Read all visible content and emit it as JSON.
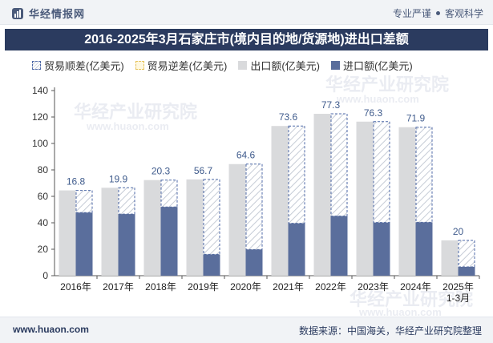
{
  "header": {
    "brand": "华经情报网",
    "tags": [
      "专业严谨",
      "客观科学"
    ]
  },
  "title": "2016-2025年3月石家庄市(境内目的地/货源地)进出口差额",
  "legend": [
    "贸易顺差(亿美元)",
    "贸易逆差(亿美元)",
    "出口额(亿美元)",
    "进口额(亿美元)"
  ],
  "watermark": {
    "cn": "华经产业研究院",
    "url": "www.huaon.com"
  },
  "footer": {
    "url": "www.huaon.com",
    "source": "数据来源：中国海关，华经产业研究院整理"
  },
  "colors": {
    "title_bg": "#2b3b5f",
    "export": "#d9dadc",
    "import": "#5a6e9c",
    "surplus_border": "#4f6aa8",
    "label": "#3f5b8c"
  },
  "chart_data": {
    "type": "bar",
    "categories": [
      "2016年",
      "2017年",
      "2018年",
      "2019年",
      "2020年",
      "2021年",
      "2022年",
      "2023年",
      "2024年",
      "2025年\n1-3月"
    ],
    "series": [
      {
        "name": "出口额(亿美元)",
        "values": [
          64.5,
          66.5,
          72.3,
          72.8,
          84.4,
          113.2,
          122.4,
          116.5,
          112.3,
          26.7
        ]
      },
      {
        "name": "进口额(亿美元)",
        "values": [
          47.7,
          46.6,
          52.0,
          16.1,
          19.8,
          39.6,
          45.1,
          40.2,
          40.4,
          6.7
        ]
      },
      {
        "name": "贸易顺差(亿美元)",
        "values": [
          16.8,
          19.9,
          20.3,
          56.7,
          64.6,
          73.6,
          77.3,
          76.3,
          71.9,
          20
        ]
      }
    ],
    "yticks": [
      0,
      20,
      40,
      60,
      80,
      100,
      120,
      140
    ],
    "ylim": [
      0,
      140
    ]
  }
}
